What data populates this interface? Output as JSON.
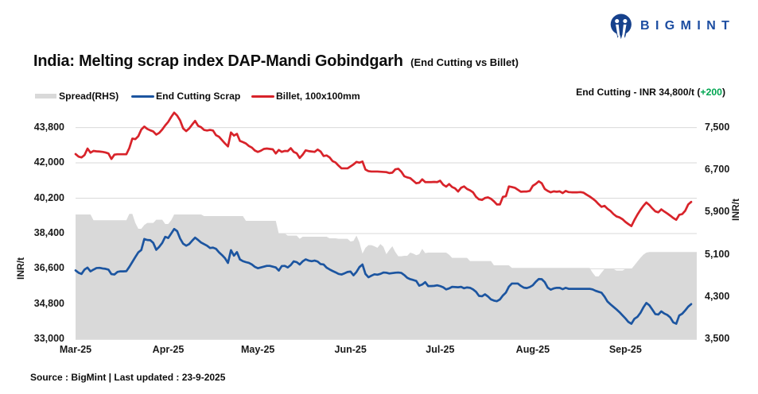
{
  "header": {
    "title_main": "India: Melting scrap index DAP-Mandi Gobindgarh",
    "title_sub": "(End Cutting vs Billet)"
  },
  "logo": {
    "brand": "BIGMINT",
    "mark": "M"
  },
  "legend": {
    "items": [
      {
        "label": "Spread(RHS)",
        "swatch": "area",
        "color": "#D9D9D9"
      },
      {
        "label": "End Cutting Scrap",
        "swatch": "line",
        "color": "#1C55A0"
      },
      {
        "label": "Billet, 100x100mm",
        "swatch": "line",
        "color": "#D8232A"
      }
    ]
  },
  "callout": {
    "prefix": "End Cutting - INR 34,800/t (",
    "change": "+200",
    "suffix": ")",
    "change_color": "#00A651"
  },
  "source_note": "Source : BigMint | Last updated : 23-9-2025",
  "chart_data": {
    "type": "line",
    "title": "India: Melting scrap index DAP-Mandi Gobindgarh (End Cutting vs Billet)",
    "x_start_date": "2025-03-01",
    "x_unit": "day",
    "x_tick_days": [
      0,
      31,
      61,
      92,
      122,
      153,
      184
    ],
    "x_tick_labels": [
      "Mar-25",
      "Apr-25",
      "May-25",
      "Jun-25",
      "Jul-25",
      "Aug-25",
      "Sep-25"
    ],
    "grid": "horizontal",
    "legend_position": "top-left",
    "y_left": {
      "label": "INR/t",
      "min": 33000,
      "max": 43800,
      "ticks": [
        33000,
        34800,
        36600,
        38400,
        40200,
        42000,
        43800
      ],
      "tick_labels": [
        "33,000",
        "34,800",
        "36,600",
        "38,400",
        "40,200",
        "42,000",
        "43,800"
      ]
    },
    "y_right": {
      "label": "INR/t",
      "min": 3500,
      "max": 7500,
      "ticks": [
        3500,
        4300,
        5100,
        5900,
        6700,
        7500
      ],
      "tick_labels": [
        "3,500",
        "4,300",
        "5,100",
        "5,900",
        "6,700",
        "7,500"
      ]
    },
    "series": [
      {
        "name": "Spread(RHS)",
        "type": "area",
        "axis": "right",
        "color": "#D9D9D9",
        "values": [
          5860,
          5860,
          5860,
          5860,
          5860,
          5860,
          5750,
          5750,
          5750,
          5750,
          5750,
          5750,
          5750,
          5750,
          5750,
          5750,
          5750,
          5750,
          5870,
          5870,
          5700,
          5590,
          5590,
          5660,
          5700,
          5700,
          5700,
          5760,
          5760,
          5760,
          5680,
          5680,
          5750,
          5860,
          5860,
          5860,
          5860,
          5860,
          5860,
          5860,
          5860,
          5860,
          5860,
          5830,
          5830,
          5830,
          5830,
          5830,
          5830,
          5830,
          5830,
          5830,
          5830,
          5830,
          5830,
          5830,
          5830,
          5740,
          5740,
          5740,
          5740,
          5740,
          5740,
          5740,
          5740,
          5740,
          5740,
          5740,
          5500,
          5500,
          5500,
          5460,
          5460,
          5460,
          5460,
          5400,
          5440,
          5440,
          5440,
          5440,
          5440,
          5440,
          5440,
          5440,
          5440,
          5410,
          5410,
          5410,
          5400,
          5400,
          5400,
          5400,
          5350,
          5360,
          5460,
          5330,
          5120,
          5230,
          5280,
          5280,
          5260,
          5230,
          5300,
          5250,
          5110,
          5190,
          5260,
          5150,
          5070,
          5070,
          5080,
          5080,
          5140,
          5120,
          5090,
          5110,
          5210,
          5130,
          5140,
          5140,
          5140,
          5140,
          5140,
          5140,
          5140,
          5100,
          5040,
          5040,
          5040,
          5040,
          5040,
          5040,
          4980,
          4980,
          4980,
          4980,
          4980,
          4980,
          4980,
          4980,
          4900,
          4900,
          4900,
          4900,
          4900,
          4900,
          4850,
          4850,
          4850,
          4850,
          4850,
          4850,
          4850,
          4850,
          4850,
          4850,
          4850,
          4850,
          4850,
          4850,
          4850,
          4850,
          4850,
          4850,
          4850,
          4850,
          4850,
          4850,
          4850,
          4850,
          4850,
          4850,
          4850,
          4760,
          4690,
          4690,
          4760,
          4830,
          4830,
          4830,
          4830,
          4800,
          4800,
          4800,
          4830,
          4830,
          4830,
          4900,
          4970,
          5040,
          5100,
          5140,
          5150,
          5150,
          5150,
          5150,
          5150,
          5150,
          5150,
          5150,
          5150,
          5150,
          5150,
          5150,
          5150,
          5150,
          5150
        ]
      },
      {
        "name": "End Cutting Scrap",
        "type": "line",
        "axis": "left",
        "color": "#1C55A0",
        "values": [
          36520,
          36400,
          36340,
          36560,
          36660,
          36470,
          36560,
          36640,
          36650,
          36620,
          36600,
          36560,
          36330,
          36310,
          36440,
          36470,
          36470,
          36480,
          36700,
          36950,
          37200,
          37440,
          37560,
          38120,
          38070,
          38060,
          37920,
          37570,
          37720,
          37920,
          38230,
          38170,
          38400,
          38630,
          38520,
          38140,
          37880,
          37780,
          37860,
          38030,
          38190,
          38070,
          37940,
          37860,
          37780,
          37660,
          37680,
          37620,
          37440,
          37300,
          37140,
          36900,
          37550,
          37270,
          37450,
          37080,
          36990,
          36940,
          36900,
          36820,
          36700,
          36630,
          36670,
          36710,
          36750,
          36750,
          36710,
          36670,
          36510,
          36740,
          36750,
          36670,
          36790,
          36980,
          36940,
          36820,
          36980,
          37080,
          37020,
          36990,
          37020,
          36970,
          36840,
          36820,
          36660,
          36570,
          36490,
          36420,
          36340,
          36310,
          36370,
          36440,
          36460,
          36270,
          36440,
          36690,
          36820,
          36340,
          36170,
          36250,
          36320,
          36300,
          36340,
          36410,
          36400,
          36360,
          36380,
          36400,
          36410,
          36390,
          36280,
          36140,
          36070,
          36030,
          35980,
          35740,
          35800,
          35920,
          35720,
          35720,
          35730,
          35760,
          35720,
          35660,
          35550,
          35600,
          35680,
          35670,
          35660,
          35680,
          35610,
          35650,
          35630,
          35550,
          35430,
          35220,
          35200,
          35300,
          35190,
          35040,
          34980,
          34950,
          35040,
          35240,
          35390,
          35690,
          35850,
          35850,
          35850,
          35730,
          35640,
          35620,
          35670,
          35760,
          35940,
          36080,
          36070,
          35920,
          35640,
          35540,
          35600,
          35630,
          35630,
          35560,
          35630,
          35580,
          35580,
          35580,
          35580,
          35580,
          35580,
          35580,
          35580,
          35550,
          35480,
          35430,
          35380,
          35180,
          34930,
          34790,
          34660,
          34530,
          34390,
          34230,
          34070,
          33890,
          33800,
          34050,
          34150,
          34350,
          34630,
          34860,
          34740,
          34520,
          34290,
          34270,
          34430,
          34320,
          34250,
          34120,
          33870,
          33800,
          34220,
          34310,
          34480,
          34670,
          34800
        ]
      },
      {
        "name": "Billet, 100x100mm",
        "type": "line",
        "axis": "left",
        "color": "#D8232A",
        "values": [
          42450,
          42320,
          42280,
          42400,
          42730,
          42520,
          42610,
          42590,
          42580,
          42560,
          42530,
          42480,
          42200,
          42420,
          42440,
          42440,
          42440,
          42440,
          42760,
          43240,
          43210,
          43360,
          43700,
          43850,
          43730,
          43660,
          43600,
          43440,
          43530,
          43700,
          43910,
          44090,
          44340,
          44560,
          44410,
          44160,
          43760,
          43620,
          43750,
          43950,
          44140,
          43890,
          43820,
          43680,
          43650,
          43680,
          43650,
          43410,
          43330,
          43160,
          42990,
          42840,
          43550,
          43390,
          43480,
          43120,
          43060,
          42990,
          42860,
          42780,
          42630,
          42560,
          42620,
          42710,
          42730,
          42710,
          42690,
          42480,
          42660,
          42560,
          42610,
          42600,
          42750,
          42560,
          42490,
          42250,
          42420,
          42640,
          42600,
          42580,
          42560,
          42680,
          42580,
          42350,
          42380,
          42280,
          42090,
          42020,
          41860,
          41720,
          41720,
          41720,
          41820,
          41920,
          42050,
          42010,
          42070,
          41660,
          41580,
          41560,
          41560,
          41560,
          41550,
          41540,
          41530,
          41480,
          41500,
          41670,
          41700,
          41550,
          41320,
          41260,
          41220,
          41090,
          40960,
          40990,
          41160,
          41020,
          41020,
          41020,
          41030,
          41020,
          41090,
          40890,
          40790,
          40920,
          40770,
          40700,
          40540,
          40730,
          40800,
          40670,
          40600,
          40500,
          40270,
          40140,
          40110,
          40210,
          40240,
          40170,
          40040,
          39880,
          39880,
          40270,
          40300,
          40800,
          40770,
          40730,
          40630,
          40530,
          40540,
          40540,
          40570,
          40830,
          40930,
          41060,
          40960,
          40670,
          40570,
          40500,
          40550,
          40530,
          40550,
          40460,
          40570,
          40510,
          40500,
          40500,
          40500,
          40510,
          40480,
          40380,
          40290,
          40180,
          40060,
          39900,
          39760,
          39810,
          39660,
          39550,
          39390,
          39270,
          39220,
          39130,
          38990,
          38880,
          38780,
          39090,
          39360,
          39600,
          39810,
          39980,
          39850,
          39680,
          39530,
          39480,
          39630,
          39520,
          39420,
          39310,
          39190,
          39100,
          39350,
          39390,
          39560,
          39880,
          40010
        ]
      }
    ]
  }
}
